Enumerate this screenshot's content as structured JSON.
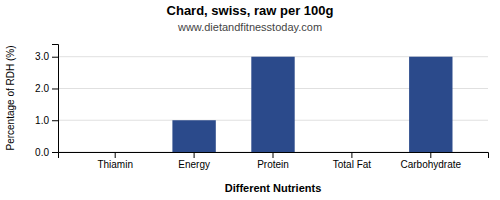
{
  "chart_data": {
    "type": "bar",
    "title": "Chard, swiss, raw per 100g",
    "subtitle": "www.dietandfitnesstoday.com",
    "xlabel": "Different Nutrients",
    "ylabel": "Percentage of RDH (%)",
    "categories": [
      "Thiamin",
      "Energy",
      "Protein",
      "Total Fat",
      "Carbohydrate"
    ],
    "values": [
      0.0,
      1.0,
      3.0,
      0.0,
      3.0
    ],
    "color": "#2b4a8b",
    "ylim": [
      0,
      3.4
    ],
    "yticks": [
      {
        "value": 0.0,
        "label": "0.0"
      },
      {
        "value": 1.0,
        "label": "1.0"
      },
      {
        "value": 2.0,
        "label": "2.0"
      },
      {
        "value": 3.0,
        "label": "3.0"
      }
    ],
    "grid": true
  }
}
